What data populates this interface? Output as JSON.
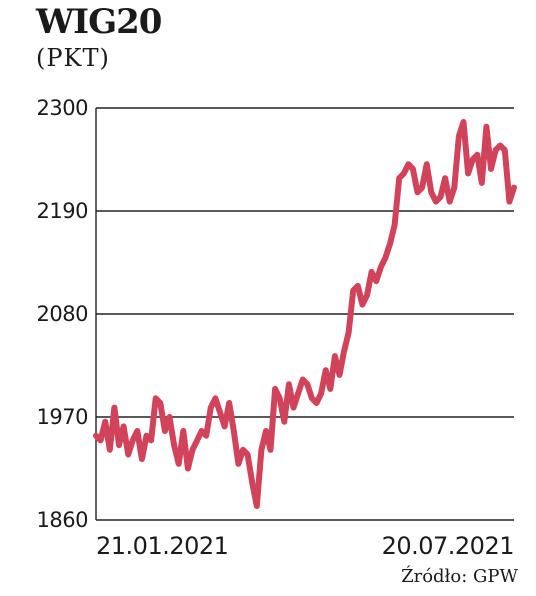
{
  "chart_data": {
    "type": "line",
    "title": "WIG20",
    "subtitle": "(PKT)",
    "xlabel": "",
    "ylabel": "",
    "ylim": [
      1860,
      2300
    ],
    "yticks": [
      "2300",
      "2190",
      "2080",
      "1970",
      "1860"
    ],
    "x_tick_labels": [
      "21.01.2021",
      "20.07.2021"
    ],
    "grid": true,
    "line_color": "#d1435b",
    "series": [
      {
        "values": [
          1950,
          1945,
          1965,
          1935,
          1980,
          1940,
          1960,
          1930,
          1945,
          1955,
          1925,
          1950,
          1945,
          1990,
          1985,
          1955,
          1970,
          1940,
          1920,
          1955,
          1915,
          1935,
          1945,
          1955,
          1950,
          1980,
          1990,
          1975,
          1960,
          1985,
          1955,
          1920,
          1935,
          1930,
          1900,
          1875,
          1935,
          1955,
          1935,
          2000,
          1990,
          1965,
          2005,
          1980,
          1995,
          2010,
          2005,
          1990,
          1985,
          1995,
          2020,
          2000,
          2035,
          2015,
          2040,
          2060,
          2105,
          2110,
          2090,
          2100,
          2125,
          2115,
          2130,
          2140,
          2155,
          2175,
          2225,
          2230,
          2240,
          2235,
          2210,
          2215,
          2240,
          2210,
          2200,
          2205,
          2225,
          2200,
          2215,
          2270,
          2285,
          2230,
          2245,
          2250,
          2220,
          2280,
          2235,
          2255,
          2260,
          2255,
          2200,
          2215
        ]
      }
    ]
  },
  "source": "Źródło: GPW"
}
